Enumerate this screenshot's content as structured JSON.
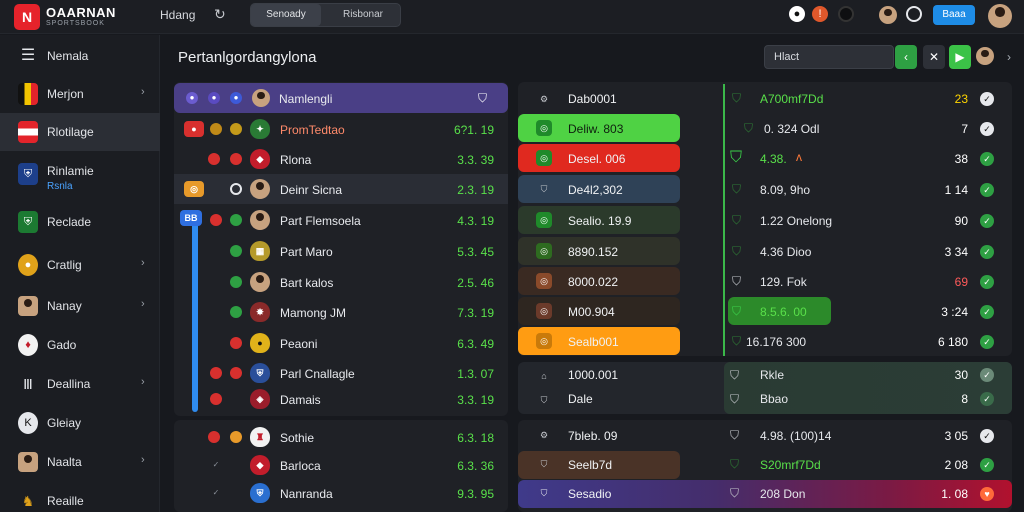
{
  "topbar": {
    "logo_mark": "N",
    "logo_text": "OAARNAN",
    "logo_sub": "SPORTSBOOK",
    "nav_link": "Hdang",
    "seg_a": "Senoady",
    "seg_b": "Risbonar",
    "login_label": "Baaa"
  },
  "sidebar": {
    "items": [
      {
        "label": "Nemala",
        "icon": "menu-icon"
      },
      {
        "label": "Merjon",
        "icon": "flag-icon"
      },
      {
        "label": "Rlotilage",
        "icon": "flag-icon"
      },
      {
        "label": "Rinlamie",
        "sub": "Rsnla",
        "icon": "shield-icon"
      },
      {
        "label": "Reclade",
        "icon": "shield-icon"
      },
      {
        "label": "Cratlig",
        "icon": "ball-icon"
      },
      {
        "label": "Nanay",
        "icon": "avatar-icon"
      },
      {
        "label": "Gado",
        "icon": "crest-icon"
      },
      {
        "label": "Deallina",
        "icon": "columns-icon"
      },
      {
        "label": "Gleiay",
        "icon": "k-icon"
      },
      {
        "label": "Naalta",
        "icon": "player-icon"
      },
      {
        "label": "Reaille",
        "icon": "trophy-icon"
      }
    ]
  },
  "main": {
    "title": "Pertanlgordangylona",
    "search_placeholder": "Hlact"
  },
  "left_table": {
    "header": {
      "name": "Namlengli"
    },
    "rows": [
      {
        "name": "PromTedtao",
        "value": "6?1. 19"
      },
      {
        "name": "Rlona",
        "value": "3.3. 39"
      },
      {
        "name": "Deinr Sicna",
        "value": "2.3. 19"
      },
      {
        "name": "Part Flemsoela",
        "value": "4.3. 19"
      },
      {
        "name": "Part Maro",
        "value": "5.3. 45"
      },
      {
        "name": "Bart kalos",
        "value": "2.5. 46"
      },
      {
        "name": "Mamong JM",
        "value": "7.3. 19"
      },
      {
        "name": "Peaoni",
        "value": "6.3. 49"
      },
      {
        "name": "Parl Cnallagle",
        "value": "1.3. 07"
      },
      {
        "name": "Damais",
        "value": "3.3. 19"
      },
      {
        "name": "Sothie",
        "value": "6.3. 18"
      },
      {
        "name": "Barloca",
        "value": "6.3. 36"
      },
      {
        "name": "Nanranda",
        "value": "9.3. 95"
      }
    ]
  },
  "right_table": {
    "rows": [
      {
        "label": "Dab0001",
        "name": "A700mf7Dd",
        "num": "23",
        "color": "#ffd600"
      },
      {
        "label": "Deliw. 803",
        "name": "0. 324 Odl",
        "num": "7",
        "color": "#ffffff"
      },
      {
        "label": "Desel. 006",
        "name": "4.38.",
        "num": "38",
        "color": "#ffffff"
      },
      {
        "label": "De4l2,302",
        "name": "8.09, 9ho",
        "num": "1 14",
        "color": "#ffffff"
      },
      {
        "label": "Sealio. 19.9",
        "name": "1.22 Onelong",
        "num": "90",
        "color": "#ffffff"
      },
      {
        "label": "8890.152",
        "name": "4.36 Dioo",
        "num": "3 34",
        "color": "#ffffff"
      },
      {
        "label": "8000.022",
        "name": "129. Fok",
        "num": "69",
        "color": "#ff5a5a"
      },
      {
        "label": "M00.904",
        "name": "8.5.6. 00",
        "num": "3 :24",
        "color": "#ffffff"
      },
      {
        "label": "Sealb001",
        "name": "16.176 300",
        "num": "6 180",
        "color": "#ffffff"
      },
      {
        "label": "1000.001",
        "name": "Rkle",
        "num": "30",
        "color": "#ffffff"
      },
      {
        "label": "Dale",
        "name": "Bbao",
        "num": "8",
        "color": "#ffffff"
      },
      {
        "label": "7bleb. 09",
        "name": "4.98. (100)14",
        "num": "3 05",
        "color": "#ffffff"
      },
      {
        "label": "Seelb7d",
        "name": "S20mrf7Dd",
        "num": "2 08",
        "color": "#ffffff"
      },
      {
        "label": "Sesadio",
        "name": "208 Don",
        "num": "1. 08",
        "color": "#ffffff"
      }
    ]
  }
}
